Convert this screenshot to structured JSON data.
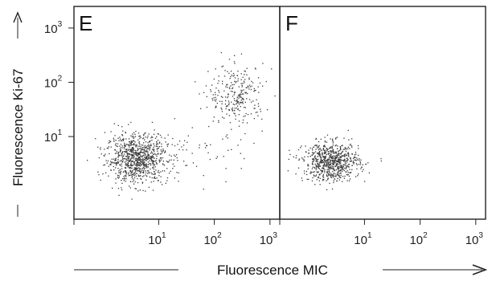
{
  "chart_data": [
    {
      "type": "scatter",
      "panel_label": "E",
      "x_scale": "log",
      "y_scale": "log",
      "xlim": [
        0.3,
        1500
      ],
      "ylim": [
        0.3,
        2500
      ],
      "xlabel": "Fluorescence MIC",
      "ylabel": "Fluorescence Ki-67",
      "x_ticks": [
        {
          "base": "10",
          "exp": "1",
          "value": 10
        },
        {
          "base": "10",
          "exp": "2",
          "value": 100
        },
        {
          "base": "10",
          "exp": "3",
          "value": 1000
        }
      ],
      "y_ticks": [
        {
          "base": "10",
          "exp": "1",
          "value": 10
        },
        {
          "base": "10",
          "exp": "2",
          "value": 100
        },
        {
          "base": "10",
          "exp": "3",
          "value": 1000
        }
      ],
      "clusters": [
        {
          "x_center": 4,
          "y_center": 4,
          "x_spread": 0.55,
          "y_spread": 0.45,
          "points": 900
        },
        {
          "x_center": 250,
          "y_center": 60,
          "x_spread": 0.5,
          "y_spread": 0.55,
          "points": 260
        },
        {
          "x_center": 60,
          "y_center": 6,
          "x_spread": 0.9,
          "y_spread": 0.6,
          "points": 60
        }
      ]
    },
    {
      "type": "scatter",
      "panel_label": "F",
      "x_scale": "log",
      "y_scale": "log",
      "xlim": [
        0.3,
        1500
      ],
      "ylim": [
        0.3,
        2500
      ],
      "x_ticks": [
        {
          "base": "10",
          "exp": "1",
          "value": 10
        },
        {
          "base": "10",
          "exp": "2",
          "value": 100
        },
        {
          "base": "10",
          "exp": "3",
          "value": 1000
        }
      ],
      "clusters": [
        {
          "x_center": 2.5,
          "y_center": 3.5,
          "x_spread": 0.5,
          "y_spread": 0.35,
          "points": 750
        }
      ]
    }
  ],
  "dot_color": "#3a3a3a"
}
